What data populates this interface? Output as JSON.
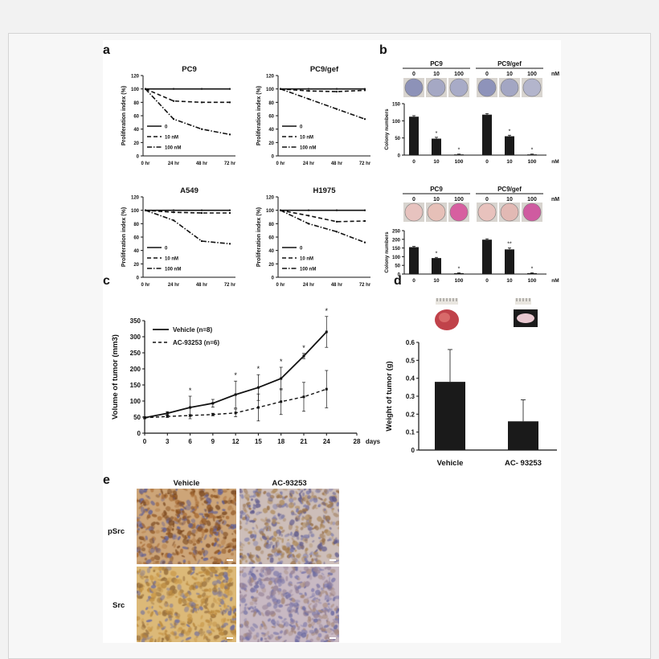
{
  "panel_letters": [
    "a",
    "b",
    "c",
    "d",
    "e"
  ],
  "colors": {
    "ink": "#111111",
    "bar": "#1a1a1a",
    "tissue_brown": "#8a5a22",
    "tissue_blue": "#7a86b4"
  },
  "panel_a": {
    "ylabel": "Proliferation index (%)",
    "yticks": [
      "0",
      "20",
      "40",
      "60",
      "80",
      "100",
      "120"
    ],
    "xticks": [
      "0 hr",
      "24 hr",
      "48 hr",
      "72 hr"
    ],
    "legend": [
      "0",
      "10 nM",
      "100 nM"
    ],
    "subplots": [
      {
        "title": "PC9"
      },
      {
        "title": "PC9/gef"
      },
      {
        "title": "A549"
      },
      {
        "title": "H1975"
      }
    ]
  },
  "panel_b": {
    "ylabel": "Colony numbers",
    "groups": [
      "PC9",
      "PC9/gef"
    ],
    "doses": [
      "0",
      "10",
      "100"
    ],
    "unit": "nM",
    "top_yticks": [
      "0",
      "50",
      "100",
      "150"
    ],
    "bottom_yticks": [
      "0",
      "50",
      "100",
      "150",
      "200",
      "250"
    ],
    "star": "*",
    "dstar": "**"
  },
  "panel_c": {
    "ylabel": "Volume of tumor (mm3)",
    "xlabel": "days",
    "xticks": [
      "0",
      "3",
      "6",
      "9",
      "12",
      "15",
      "18",
      "21",
      "24",
      "28"
    ],
    "yticks": [
      "0",
      "50",
      "100",
      "150",
      "200",
      "250",
      "300",
      "350"
    ],
    "legend": [
      "Vehicle  (n=8)",
      "AC-93253 (n=6)"
    ],
    "star": "*"
  },
  "panel_d": {
    "ylabel": "Weight of tumor (g)",
    "yticks": [
      "0",
      "0.1",
      "0.2",
      "0.3",
      "0.4",
      "0.5",
      "0.6"
    ],
    "categories": [
      "Vehicle",
      "AC- 93253"
    ]
  },
  "panel_e": {
    "columns": [
      "Vehicle",
      "AC-93253"
    ],
    "rows": [
      "pSrc",
      "Src"
    ]
  },
  "chart_data": [
    {
      "type": "line",
      "title": "PC9",
      "ylabel": "Proliferation index (%)",
      "categories": [
        "0 hr",
        "24 hr",
        "48 hr",
        "72 hr"
      ],
      "ylim": [
        0,
        120
      ],
      "series": [
        {
          "name": "0",
          "values": [
            100,
            100,
            100,
            100
          ]
        },
        {
          "name": "10 nM",
          "values": [
            100,
            82,
            80,
            80
          ]
        },
        {
          "name": "100 nM",
          "values": [
            100,
            55,
            40,
            32
          ]
        }
      ]
    },
    {
      "type": "line",
      "title": "PC9/gef",
      "ylabel": "Proliferation index (%)",
      "categories": [
        "0 hr",
        "24 hr",
        "48 hr",
        "72 hr"
      ],
      "ylim": [
        0,
        120
      ],
      "series": [
        {
          "name": "0",
          "values": [
            100,
            100,
            100,
            100
          ]
        },
        {
          "name": "10 nM",
          "values": [
            100,
            97,
            96,
            98
          ]
        },
        {
          "name": "100 nM",
          "values": [
            100,
            85,
            70,
            55
          ]
        }
      ]
    },
    {
      "type": "line",
      "title": "A549",
      "ylabel": "Proliferation index (%)",
      "categories": [
        "0 hr",
        "24 hr",
        "48 hr",
        "72 hr"
      ],
      "ylim": [
        0,
        120
      ],
      "series": [
        {
          "name": "0",
          "values": [
            100,
            100,
            100,
            100
          ]
        },
        {
          "name": "10 nM",
          "values": [
            100,
            97,
            96,
            96
          ]
        },
        {
          "name": "100 nM",
          "values": [
            100,
            85,
            54,
            50
          ]
        }
      ]
    },
    {
      "type": "line",
      "title": "H1975",
      "ylabel": "Proliferation index (%)",
      "categories": [
        "0 hr",
        "24 hr",
        "48 hr",
        "72 hr"
      ],
      "ylim": [
        0,
        120
      ],
      "series": [
        {
          "name": "0",
          "values": [
            100,
            100,
            100,
            100
          ]
        },
        {
          "name": "10 nM",
          "values": [
            100,
            92,
            83,
            84
          ]
        },
        {
          "name": "100 nM",
          "values": [
            100,
            80,
            68,
            52
          ]
        }
      ]
    },
    {
      "type": "bar",
      "ylabel": "Colony numbers",
      "ylim": [
        0,
        150
      ],
      "categories": [
        "0",
        "10",
        "100",
        "0",
        "10",
        "100"
      ],
      "groups": [
        "PC9",
        "PC9/gef"
      ],
      "values": [
        112,
        48,
        2,
        118,
        55,
        2
      ],
      "errors": [
        3,
        4,
        1,
        3,
        3,
        1
      ]
    },
    {
      "type": "bar",
      "ylabel": "Colony numbers",
      "ylim": [
        0,
        250
      ],
      "categories": [
        "0",
        "10",
        "100",
        "0",
        "10",
        "100"
      ],
      "groups": [
        "PC9",
        "PC9/gef"
      ],
      "values": [
        155,
        92,
        5,
        198,
        142,
        5
      ],
      "errors": [
        4,
        4,
        2,
        5,
        8,
        2
      ]
    },
    {
      "type": "line",
      "ylabel": "Volume of tumor (mm3)",
      "xlabel": "days",
      "xlim": [
        0,
        28
      ],
      "ylim": [
        0,
        350
      ],
      "x": [
        0,
        3,
        6,
        9,
        12,
        15,
        18,
        21,
        24
      ],
      "series": [
        {
          "name": "Vehicle  (n=8)",
          "values": [
            48,
            62,
            80,
            93,
            120,
            142,
            170,
            240,
            315
          ],
          "errors": [
            3,
            5,
            35,
            12,
            42,
            40,
            35,
            8,
            48
          ]
        },
        {
          "name": "AC-93253 (n=6)",
          "values": [
            48,
            52,
            55,
            58,
            63,
            80,
            98,
            113,
            137
          ],
          "errors": [
            3,
            3,
            3,
            4,
            12,
            42,
            40,
            45,
            58
          ]
        }
      ]
    },
    {
      "type": "bar",
      "ylabel": "Weight of tumor (g)",
      "ylim": [
        0,
        0.6
      ],
      "categories": [
        "Vehicle",
        "AC- 93253"
      ],
      "values": [
        0.38,
        0.16
      ],
      "errors": [
        0.18,
        0.12
      ]
    }
  ]
}
